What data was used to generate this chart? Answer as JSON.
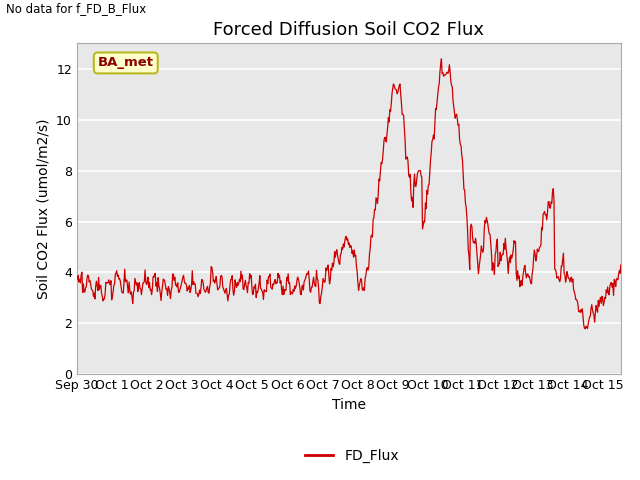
{
  "title": "Forced Diffusion Soil CO2 Flux",
  "ylabel": "Soil CO2 Flux (umol/m2/s)",
  "xlabel": "Time",
  "top_left_text": "No data for f_FD_B_Flux",
  "legend_label": "FD_Flux",
  "annotation_box": "BA_met",
  "line_color": "#cc0000",
  "background_color": "#e8e8e8",
  "ylim": [
    0,
    13
  ],
  "yticks": [
    0,
    2,
    4,
    6,
    8,
    10,
    12
  ],
  "tick_days": [
    0,
    1,
    2,
    3,
    4,
    5,
    6,
    7,
    8,
    9,
    10,
    11,
    12,
    13,
    14,
    15
  ],
  "tick_labels": [
    "Sep 30",
    "Oct 1",
    "Oct 2",
    "Oct 3",
    "Oct 4",
    "Oct 5",
    "Oct 6",
    "Oct 7",
    "Oct 8",
    "Oct 9",
    "Oct 10",
    "Oct 11",
    "Oct 12",
    "Oct 13",
    "Oct 14",
    "Oct 15"
  ],
  "xlim": [
    0,
    15.5
  ],
  "title_fontsize": 13,
  "label_fontsize": 10,
  "tick_fontsize": 9
}
